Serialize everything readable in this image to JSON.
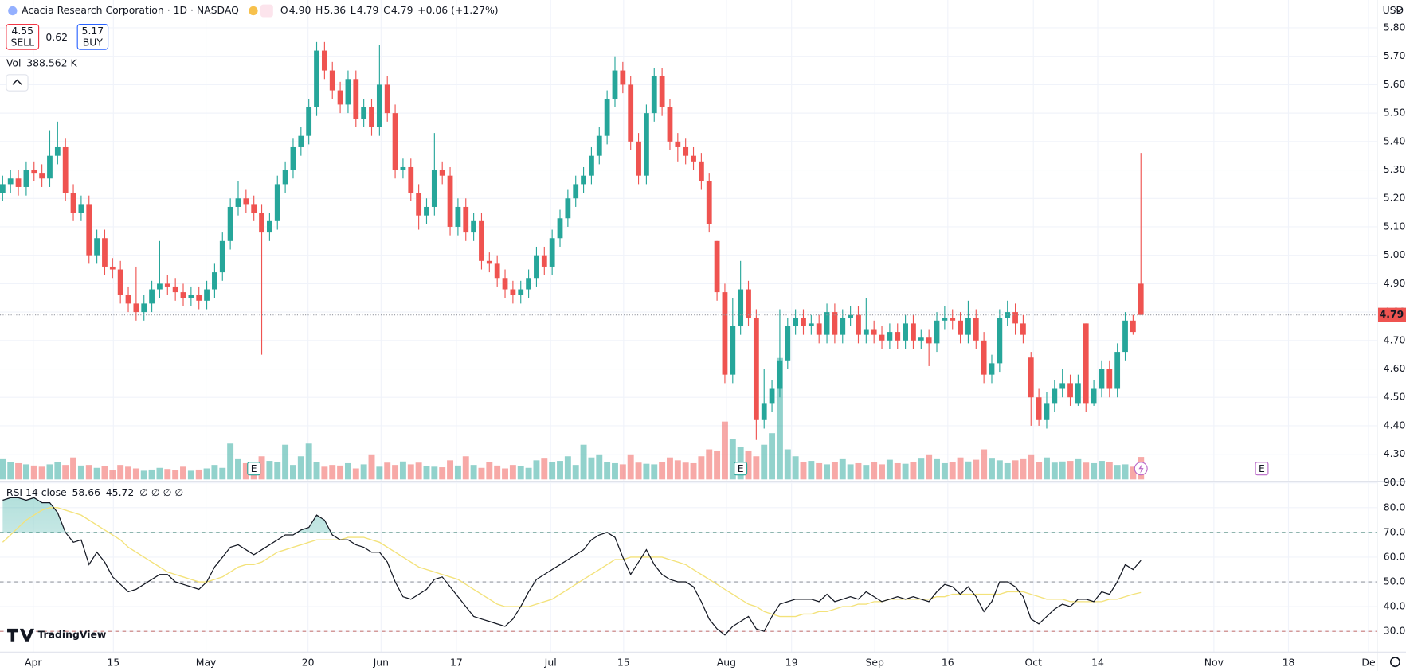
{
  "chart_data": {
    "type": "candlestick",
    "header": {
      "symbol": "Acacia Research Corporation · 1D · NASDAQ",
      "ohlc": [
        {
          "label": "O",
          "value": "4.90"
        },
        {
          "label": "H",
          "value": "5.36"
        },
        {
          "label": "L",
          "value": "4.79"
        },
        {
          "label": "C",
          "value": "4.79"
        }
      ],
      "change": "+0.06 (+1.27%)"
    },
    "quote": {
      "sell": "4.55",
      "sell_label": "SELL",
      "spread": "0.62",
      "buy": "5.17",
      "buy_label": "BUY"
    },
    "volume_legend": {
      "label": "Vol",
      "value": "388.562 K"
    },
    "rsi_legend": {
      "label": "RSI 14 close",
      "value": "58.66",
      "ma": "45.72",
      "extra": "∅ ∅ ∅ ∅"
    },
    "currency": "USD",
    "last_price": "4.79",
    "brand": "TradingView",
    "colors": {
      "up": "#26a69a",
      "down": "#ef5350",
      "rsi": "#131722",
      "rsi_ma": "#f3e27a"
    },
    "xlim": [
      -0.34,
      175.1
    ],
    "ylim": [
      4.205,
      5.898
    ],
    "rsi_ylim": [
      21.6,
      90.7
    ],
    "grid": true,
    "xticks": [
      {
        "value": 3.9,
        "label": "Apr"
      },
      {
        "value": 14.1,
        "label": "15"
      },
      {
        "value": 25.9,
        "label": "May"
      },
      {
        "value": 38.9,
        "label": "20"
      },
      {
        "value": 48.2,
        "label": "Jun"
      },
      {
        "value": 57.8,
        "label": "17"
      },
      {
        "value": 69.8,
        "label": "Jul"
      },
      {
        "value": 79.1,
        "label": "15"
      },
      {
        "value": 92.2,
        "label": "Aug"
      },
      {
        "value": 100.5,
        "label": "19"
      },
      {
        "value": 111.1,
        "label": "Sep"
      },
      {
        "value": 120.4,
        "label": "16"
      },
      {
        "value": 131.3,
        "label": "Oct"
      },
      {
        "value": 139.5,
        "label": "14"
      },
      {
        "value": 154.3,
        "label": "Nov"
      },
      {
        "value": 163.8,
        "label": "18"
      },
      {
        "value": 174,
        "label": "De"
      }
    ],
    "yticks": [
      {
        "value": 4.3,
        "label": "4.30"
      },
      {
        "value": 4.4,
        "label": "4.40"
      },
      {
        "value": 4.5,
        "label": "4.50"
      },
      {
        "value": 4.6,
        "label": "4.60"
      },
      {
        "value": 4.7,
        "label": "4.70"
      },
      {
        "value": 4.8,
        "label": "4.80"
      },
      {
        "value": 4.9,
        "label": "4.90"
      },
      {
        "value": 5,
        "label": "5.00"
      },
      {
        "value": 5.1,
        "label": "5.10"
      },
      {
        "value": 5.2,
        "label": "5.20"
      },
      {
        "value": 5.3,
        "label": "5.30"
      },
      {
        "value": 5.4,
        "label": "5.40"
      },
      {
        "value": 5.5,
        "label": "5.50"
      },
      {
        "value": 5.6,
        "label": "5.60"
      },
      {
        "value": 5.7,
        "label": "5.70"
      },
      {
        "value": 5.8,
        "label": "5.80"
      }
    ],
    "rsi_yticks": [
      {
        "value": 30,
        "label": "30.00"
      },
      {
        "value": 40,
        "label": "40.00"
      },
      {
        "value": 50,
        "label": "50.00"
      },
      {
        "value": 60,
        "label": "60.00"
      },
      {
        "value": 70,
        "label": "70.00"
      },
      {
        "value": 80,
        "label": "80.00"
      },
      {
        "value": 90,
        "label": "90.00"
      }
    ],
    "rsi_levels": [
      {
        "value": 70,
        "color": "#4f8a7f"
      },
      {
        "value": 50,
        "color": "#9598a1"
      },
      {
        "value": 30,
        "color": "#c77a7a"
      }
    ],
    "earnings": [
      {
        "x": 32,
        "label": "E",
        "color": "#26a69a"
      },
      {
        "x": 94,
        "label": "E",
        "color": "#26a69a"
      },
      {
        "x": 160.4,
        "label": "E",
        "color": "#ba68c8"
      }
    ],
    "candles": [
      [
        5.22,
        5.28,
        5.19,
        5.25
      ],
      [
        5.25,
        5.3,
        5.22,
        5.27
      ],
      [
        5.27,
        5.3,
        5.21,
        5.24
      ],
      [
        5.24,
        5.33,
        5.21,
        5.3
      ],
      [
        5.3,
        5.33,
        5.26,
        5.29
      ],
      [
        5.29,
        5.32,
        5.24,
        5.27
      ],
      [
        5.27,
        5.44,
        5.24,
        5.35
      ],
      [
        5.35,
        5.47,
        5.32,
        5.38
      ],
      [
        5.38,
        5.41,
        5.19,
        5.22
      ],
      [
        5.22,
        5.25,
        5.12,
        5.15
      ],
      [
        5.15,
        5.21,
        5.12,
        5.18
      ],
      [
        5.18,
        5.21,
        4.97,
        5.0
      ],
      [
        5.0,
        5.09,
        4.97,
        5.06
      ],
      [
        5.06,
        5.09,
        4.93,
        4.96
      ],
      [
        4.96,
        4.99,
        4.92,
        4.95
      ],
      [
        4.95,
        4.98,
        4.83,
        4.86
      ],
      [
        4.86,
        4.89,
        4.8,
        4.83
      ],
      [
        4.83,
        4.96,
        4.77,
        4.8
      ],
      [
        4.8,
        4.86,
        4.77,
        4.83
      ],
      [
        4.83,
        4.91,
        4.8,
        4.88
      ],
      [
        4.88,
        5.05,
        4.85,
        4.9
      ],
      [
        4.9,
        4.93,
        4.86,
        4.89
      ],
      [
        4.89,
        4.92,
        4.84,
        4.87
      ],
      [
        4.87,
        4.9,
        4.82,
        4.85
      ],
      [
        4.85,
        4.89,
        4.82,
        4.86
      ],
      [
        4.86,
        4.89,
        4.81,
        4.84
      ],
      [
        4.84,
        4.91,
        4.81,
        4.88
      ],
      [
        4.88,
        4.97,
        4.85,
        4.94
      ],
      [
        4.94,
        5.08,
        4.91,
        5.05
      ],
      [
        5.05,
        5.2,
        5.02,
        5.17
      ],
      [
        5.17,
        5.26,
        5.14,
        5.2
      ],
      [
        5.2,
        5.23,
        5.15,
        5.18
      ],
      [
        5.18,
        5.21,
        5.12,
        5.15
      ],
      [
        5.15,
        5.18,
        4.65,
        5.08
      ],
      [
        5.08,
        5.15,
        5.05,
        5.12
      ],
      [
        5.12,
        5.28,
        5.09,
        5.25
      ],
      [
        5.25,
        5.33,
        5.22,
        5.3
      ],
      [
        5.3,
        5.41,
        5.27,
        5.38
      ],
      [
        5.38,
        5.45,
        5.35,
        5.42
      ],
      [
        5.42,
        5.55,
        5.39,
        5.52
      ],
      [
        5.52,
        5.75,
        5.49,
        5.72
      ],
      [
        5.72,
        5.75,
        5.62,
        5.65
      ],
      [
        5.65,
        5.68,
        5.55,
        5.58
      ],
      [
        5.58,
        5.61,
        5.5,
        5.53
      ],
      [
        5.53,
        5.65,
        5.5,
        5.62
      ],
      [
        5.62,
        5.65,
        5.45,
        5.48
      ],
      [
        5.48,
        5.55,
        5.45,
        5.52
      ],
      [
        5.52,
        5.55,
        5.42,
        5.45
      ],
      [
        5.45,
        5.74,
        5.42,
        5.6
      ],
      [
        5.6,
        5.63,
        5.47,
        5.5
      ],
      [
        5.5,
        5.53,
        5.27,
        5.3
      ],
      [
        5.3,
        5.34,
        5.27,
        5.31
      ],
      [
        5.31,
        5.34,
        5.19,
        5.22
      ],
      [
        5.22,
        5.25,
        5.09,
        5.14
      ],
      [
        5.14,
        5.2,
        5.11,
        5.17
      ],
      [
        5.17,
        5.43,
        5.14,
        5.3
      ],
      [
        5.3,
        5.33,
        5.25,
        5.28
      ],
      [
        5.28,
        5.31,
        5.07,
        5.1
      ],
      [
        5.1,
        5.2,
        5.07,
        5.17
      ],
      [
        5.17,
        5.2,
        5.05,
        5.08
      ],
      [
        5.08,
        5.15,
        5.05,
        5.12
      ],
      [
        5.12,
        5.15,
        4.95,
        4.98
      ],
      [
        4.98,
        5.01,
        4.94,
        4.97
      ],
      [
        4.97,
        5.0,
        4.89,
        4.92
      ],
      [
        4.92,
        4.95,
        4.85,
        4.88
      ],
      [
        4.88,
        4.91,
        4.83,
        4.86
      ],
      [
        4.86,
        4.91,
        4.83,
        4.88
      ],
      [
        4.88,
        4.95,
        4.85,
        4.92
      ],
      [
        4.92,
        5.03,
        4.89,
        5.0
      ],
      [
        5.0,
        5.03,
        4.93,
        4.96
      ],
      [
        4.96,
        5.09,
        4.93,
        5.06
      ],
      [
        5.06,
        5.16,
        5.03,
        5.13
      ],
      [
        5.13,
        5.23,
        5.1,
        5.2
      ],
      [
        5.2,
        5.28,
        5.17,
        5.25
      ],
      [
        5.25,
        5.31,
        5.22,
        5.28
      ],
      [
        5.28,
        5.38,
        5.25,
        5.35
      ],
      [
        5.35,
        5.45,
        5.32,
        5.42
      ],
      [
        5.42,
        5.58,
        5.39,
        5.55
      ],
      [
        5.55,
        5.7,
        5.52,
        5.65
      ],
      [
        5.65,
        5.68,
        5.57,
        5.6
      ],
      [
        5.6,
        5.63,
        5.37,
        5.4
      ],
      [
        5.4,
        5.43,
        5.25,
        5.28
      ],
      [
        5.28,
        5.53,
        5.25,
        5.5
      ],
      [
        5.5,
        5.66,
        5.47,
        5.63
      ],
      [
        5.63,
        5.66,
        5.49,
        5.52
      ],
      [
        5.52,
        5.55,
        5.37,
        5.4
      ],
      [
        5.4,
        5.43,
        5.33,
        5.38
      ],
      [
        5.38,
        5.41,
        5.32,
        5.35
      ],
      [
        5.35,
        5.38,
        5.3,
        5.33
      ],
      [
        5.33,
        5.36,
        5.23,
        5.26
      ],
      [
        5.26,
        5.29,
        5.08,
        5.11
      ],
      [
        5.05,
        5.05,
        4.84,
        4.87
      ],
      [
        4.87,
        4.9,
        4.55,
        4.58
      ],
      [
        4.58,
        4.85,
        4.55,
        4.75
      ],
      [
        4.75,
        4.98,
        4.72,
        4.88
      ],
      [
        4.88,
        4.91,
        4.75,
        4.78
      ],
      [
        4.78,
        4.81,
        4.35,
        4.42
      ],
      [
        4.42,
        4.6,
        4.39,
        4.48
      ],
      [
        4.48,
        4.56,
        4.45,
        4.53
      ],
      [
        4.53,
        4.81,
        4.5,
        4.63
      ],
      [
        4.63,
        4.78,
        4.6,
        4.75
      ],
      [
        4.75,
        4.81,
        4.72,
        4.78
      ],
      [
        4.78,
        4.81,
        4.72,
        4.75
      ],
      [
        4.75,
        4.79,
        4.72,
        4.76
      ],
      [
        4.76,
        4.79,
        4.69,
        4.72
      ],
      [
        4.72,
        4.83,
        4.69,
        4.8
      ],
      [
        4.8,
        4.83,
        4.69,
        4.72
      ],
      [
        4.72,
        4.81,
        4.69,
        4.78
      ],
      [
        4.78,
        4.82,
        4.75,
        4.79
      ],
      [
        4.79,
        4.82,
        4.69,
        4.72
      ],
      [
        4.72,
        4.85,
        4.69,
        4.74
      ],
      [
        4.74,
        4.77,
        4.69,
        4.72
      ],
      [
        4.72,
        4.75,
        4.67,
        4.7
      ],
      [
        4.7,
        4.76,
        4.67,
        4.73
      ],
      [
        4.73,
        4.76,
        4.67,
        4.7
      ],
      [
        4.7,
        4.79,
        4.67,
        4.76
      ],
      [
        4.76,
        4.79,
        4.67,
        4.7
      ],
      [
        4.7,
        4.74,
        4.67,
        4.71
      ],
      [
        4.71,
        4.74,
        4.61,
        4.69
      ],
      [
        4.69,
        4.8,
        4.66,
        4.77
      ],
      [
        4.77,
        4.82,
        4.74,
        4.78
      ],
      [
        4.78,
        4.81,
        4.74,
        4.77
      ],
      [
        4.77,
        4.8,
        4.69,
        4.72
      ],
      [
        4.72,
        4.84,
        4.69,
        4.78
      ],
      [
        4.78,
        4.81,
        4.67,
        4.7
      ],
      [
        4.7,
        4.73,
        4.55,
        4.58
      ],
      [
        4.58,
        4.65,
        4.55,
        4.62
      ],
      [
        4.62,
        4.81,
        4.59,
        4.78
      ],
      [
        4.78,
        4.84,
        4.75,
        4.8
      ],
      [
        4.8,
        4.83,
        4.72,
        4.76
      ],
      [
        4.76,
        4.79,
        4.69,
        4.72
      ],
      [
        4.64,
        4.66,
        4.4,
        4.5
      ],
      [
        4.5,
        4.53,
        4.4,
        4.42
      ],
      [
        4.42,
        4.52,
        4.39,
        4.48
      ],
      [
        4.48,
        4.56,
        4.45,
        4.53
      ],
      [
        4.53,
        4.6,
        4.5,
        4.55
      ],
      [
        4.55,
        4.58,
        4.47,
        4.5
      ],
      [
        4.48,
        4.58,
        4.47,
        4.55
      ],
      [
        4.76,
        4.76,
        4.45,
        4.48
      ],
      [
        4.48,
        4.56,
        4.47,
        4.53
      ],
      [
        4.53,
        4.63,
        4.5,
        4.6
      ],
      [
        4.6,
        4.63,
        4.5,
        4.53
      ],
      [
        4.53,
        4.69,
        4.5,
        4.66
      ],
      [
        4.66,
        4.8,
        4.63,
        4.77
      ],
      [
        4.77,
        4.79,
        4.72,
        4.73
      ],
      [
        4.9,
        5.36,
        4.79,
        4.79
      ]
    ],
    "volumes": [
      350,
      300,
      280,
      260,
      240,
      220,
      260,
      300,
      250,
      380,
      240,
      250,
      200,
      230,
      160,
      250,
      220,
      190,
      150,
      170,
      200,
      180,
      160,
      220,
      150,
      170,
      190,
      250,
      200,
      620,
      350,
      280,
      240,
      400,
      320,
      300,
      600,
      250,
      400,
      620,
      300,
      220,
      250,
      240,
      280,
      190,
      260,
      420,
      220,
      290,
      250,
      310,
      260,
      290,
      230,
      220,
      210,
      330,
      240,
      400,
      250,
      200,
      300,
      240,
      190,
      250,
      230,
      200,
      330,
      360,
      300,
      320,
      400,
      250,
      600,
      380,
      420,
      300,
      280,
      260,
      420,
      290,
      270,
      260,
      300,
      380,
      330,
      290,
      280,
      400,
      520,
      500,
      1000,
      700,
      560,
      500,
      400,
      600,
      800,
      2100,
      520,
      400,
      300,
      320,
      280,
      260,
      300,
      350,
      260,
      280,
      250,
      300,
      260,
      340,
      280,
      270,
      300,
      360,
      420,
      350,
      280,
      300,
      380,
      310,
      340,
      520,
      360,
      330,
      280,
      330,
      350,
      420,
      300,
      380,
      290,
      310,
      320,
      350,
      290,
      280,
      320,
      300,
      250,
      260,
      220,
      388.562
    ],
    "rsi": [
      83,
      84,
      84,
      83,
      84,
      82,
      82,
      78,
      70,
      66,
      67,
      57,
      62,
      58,
      52,
      49,
      46,
      47,
      49,
      51,
      53,
      53,
      50,
      49,
      48,
      47,
      50,
      56,
      60,
      64,
      65,
      63,
      61,
      63,
      65,
      67,
      69,
      69,
      71,
      72,
      77,
      75,
      69,
      67,
      67,
      65,
      64,
      62,
      62,
      58,
      50,
      44,
      43,
      45,
      47,
      51,
      52,
      48,
      44,
      40,
      36,
      35,
      34,
      33,
      32,
      35,
      40,
      46,
      51,
      53,
      55,
      57,
      59,
      61,
      63,
      67,
      69,
      70,
      68,
      60,
      53,
      58,
      63,
      57,
      53,
      51,
      50,
      50,
      48,
      42,
      35,
      31,
      28.5,
      32,
      34,
      36,
      31,
      30,
      36,
      41,
      42,
      43,
      43,
      43,
      42,
      45,
      42,
      43,
      44,
      43,
      46,
      44,
      42,
      43,
      44,
      43,
      44,
      43,
      42,
      46,
      49,
      48,
      45,
      48,
      44,
      38,
      42,
      50,
      50,
      48,
      44,
      35,
      33,
      36,
      39,
      41,
      40,
      43,
      43,
      42,
      46,
      45,
      50,
      57,
      55,
      58.66
    ],
    "rsi_ma": [
      66,
      69,
      72,
      75,
      77,
      79,
      80,
      80,
      79,
      78,
      77,
      75,
      73,
      71,
      69,
      67,
      64,
      62,
      60,
      58,
      56,
      54,
      53,
      52,
      51,
      50,
      50,
      51,
      52,
      54,
      56,
      57,
      57,
      58,
      60,
      62,
      63,
      64,
      65,
      66,
      67,
      67,
      67,
      67,
      68,
      68,
      68,
      67,
      66,
      64,
      62,
      60,
      58,
      56,
      55,
      54,
      53,
      52,
      51,
      49,
      47,
      45,
      43,
      41,
      40,
      40,
      40,
      40,
      41,
      42,
      43,
      45,
      47,
      49,
      51,
      53,
      55,
      57,
      59,
      59,
      60,
      60,
      60,
      60,
      60,
      59,
      58,
      57,
      55,
      53,
      51,
      49,
      47,
      45,
      43,
      41,
      40,
      38,
      37,
      36,
      36,
      36,
      37,
      37,
      38,
      38,
      39,
      40,
      40,
      41,
      41,
      42,
      42,
      43,
      43,
      43,
      43,
      43,
      43,
      44,
      44,
      45,
      45,
      45,
      45,
      45,
      45,
      45,
      46,
      46,
      46,
      45,
      44,
      43,
      43,
      43,
      42,
      42,
      42,
      42,
      42,
      43,
      43,
      44,
      45,
      45.72
    ]
  }
}
